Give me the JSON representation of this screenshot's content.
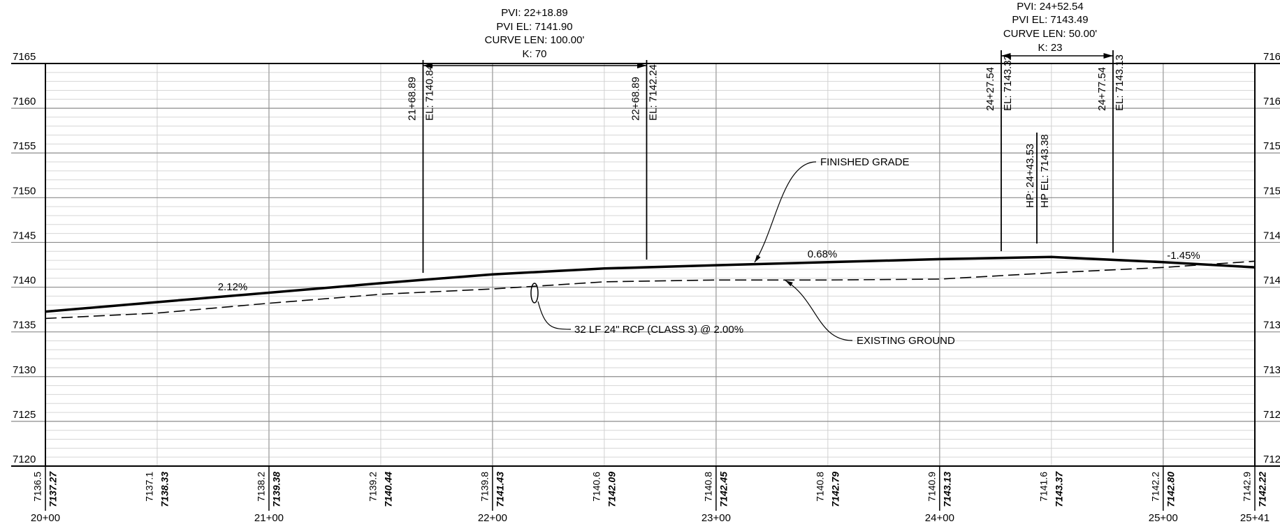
{
  "chart_data": {
    "type": "line",
    "xlim": [
      2000,
      2541
    ],
    "xticks": [
      {
        "value": 2000,
        "label": "20+00"
      },
      {
        "value": 2100,
        "label": "21+00"
      },
      {
        "value": 2200,
        "label": "22+00"
      },
      {
        "value": 2300,
        "label": "23+00"
      },
      {
        "value": 2400,
        "label": "24+00"
      },
      {
        "value": 2500,
        "label": "25+00"
      },
      {
        "value": 2541,
        "label": "25+41"
      }
    ],
    "ylim": [
      7120,
      7165
    ],
    "yticks": [
      7120,
      7125,
      7130,
      7135,
      7140,
      7145,
      7150,
      7155,
      7160,
      7165
    ],
    "grid": true,
    "x": [
      2000,
      2050,
      2100,
      2150,
      2200,
      2250,
      2300,
      2350,
      2400,
      2450,
      2500,
      2541
    ],
    "series": [
      {
        "name": "FINISHED GRADE",
        "color": "#000000",
        "values": [
          7137.27,
          7138.33,
          7139.38,
          7140.44,
          7141.43,
          7142.09,
          7142.45,
          7142.79,
          7143.13,
          7143.37,
          7142.8,
          7142.22
        ],
        "value_labels": [
          "7137.27",
          "7138.33",
          "7139.38",
          "7140.44",
          "7141.43",
          "7142.09",
          "7142.45",
          "7142.79",
          "7143.13",
          "7143.37",
          "7142.80",
          "7142.22"
        ]
      },
      {
        "name": "EXISTING GROUND",
        "color": "#000000",
        "values": [
          7136.5,
          7137.1,
          7138.2,
          7139.2,
          7139.8,
          7140.6,
          7140.8,
          7140.8,
          7140.9,
          7141.6,
          7142.2,
          7142.9
        ]
      }
    ],
    "vertical_curves": [
      {
        "pvi": "PVI: 22+18.89",
        "pvi_el": "PVI EL: 7141.90",
        "length": "CURVE LEN: 100.00'",
        "k": "K: 70",
        "pvc": "21+68.89",
        "pvc_el": "EL: 7140.84",
        "pvt": "22+68.89",
        "pvt_el": "EL: 7142.24"
      },
      {
        "pvi": "PVI: 24+52.54",
        "pvi_el": "PVI EL: 7143.49",
        "length": "CURVE LEN: 50.00'",
        "k": "K: 23",
        "pvc": "24+27.54",
        "pvc_el": "EL: 7143.32",
        "pvt": "24+77.54",
        "pvt_el": "EL: 7143.13",
        "hp": "HP: 24+43.53",
        "hp_el": "HP EL: 7143.38"
      }
    ],
    "grade_labels": [
      "2.12%",
      "0.68%",
      "-1.45%"
    ],
    "note": "32 LF 24\" RCP (CLASS 3) @ 2.00%"
  }
}
